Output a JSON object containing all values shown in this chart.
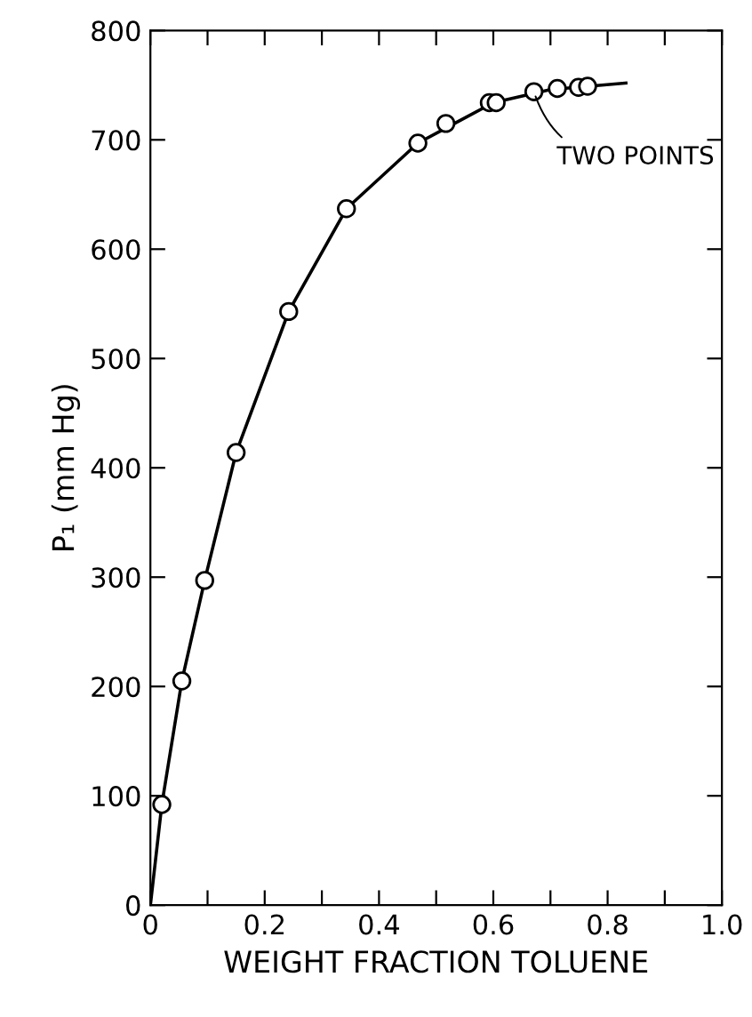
{
  "chart_data": {
    "type": "scatter",
    "xlabel": "WEIGHT FRACTION TOLUENE",
    "ylabel": "P₁ (mm Hg)",
    "xlim": [
      0,
      1.0
    ],
    "ylim": [
      0,
      800
    ],
    "xticks": [
      0,
      {
        "value": 0.1,
        "label": null
      },
      0.2,
      {
        "value": 0.3,
        "label": null
      },
      0.4,
      {
        "value": 0.5,
        "label": null
      },
      0.6,
      {
        "value": 0.7,
        "label": null
      },
      0.8,
      {
        "value": 0.9,
        "label": null
      },
      {
        "value": 1.0,
        "label": "1.0"
      }
    ],
    "yticks": [
      0,
      100,
      200,
      300,
      400,
      500,
      600,
      700,
      800
    ],
    "grid": false,
    "legend": false,
    "marker": "circle",
    "series": [
      {
        "type": "line",
        "color": "#000000",
        "marker": "none",
        "line_style": "solid",
        "x": [
          0,
          0.02,
          0.055,
          0.095,
          0.15,
          0.242,
          0.343,
          0.468,
          0.6,
          0.7,
          0.832
        ],
        "values": [
          0,
          92,
          205,
          297,
          414,
          543,
          637,
          697,
          734,
          746,
          752
        ]
      },
      {
        "color": "#000000",
        "x": [
          0.02,
          0.055,
          0.095,
          0.15,
          0.242,
          0.343,
          0.468,
          0.517,
          0.593,
          0.605,
          0.671,
          0.712,
          0.749,
          0.765
        ],
        "values": [
          92,
          205,
          297,
          414,
          543,
          637,
          697,
          715,
          734,
          734,
          744,
          747,
          748,
          749
        ]
      }
    ],
    "annotations": [
      {
        "text": "TWO POINTS",
        "x": 0.671,
        "y": 744
      }
    ]
  }
}
